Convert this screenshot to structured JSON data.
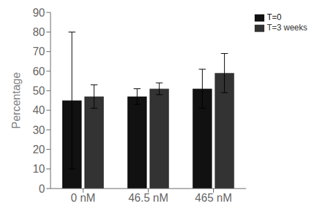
{
  "chart_data": {
    "type": "bar",
    "categories": [
      "0 nM",
      "46.5 nM",
      "465 nM"
    ],
    "series": [
      {
        "name": "T=0",
        "color": "#111111",
        "values": [
          45,
          47,
          51
        ],
        "errors": [
          35,
          4,
          10
        ]
      },
      {
        "name": "T=3 weeks",
        "color": "#333333",
        "values": [
          47,
          51,
          59
        ],
        "errors": [
          6,
          3,
          10
        ]
      }
    ],
    "ylabel": "Percentage",
    "ylim": [
      0,
      90
    ],
    "yticks": [
      0,
      10,
      20,
      30,
      40,
      50,
      60,
      70,
      80,
      90
    ],
    "grid": false,
    "legend": "right"
  }
}
